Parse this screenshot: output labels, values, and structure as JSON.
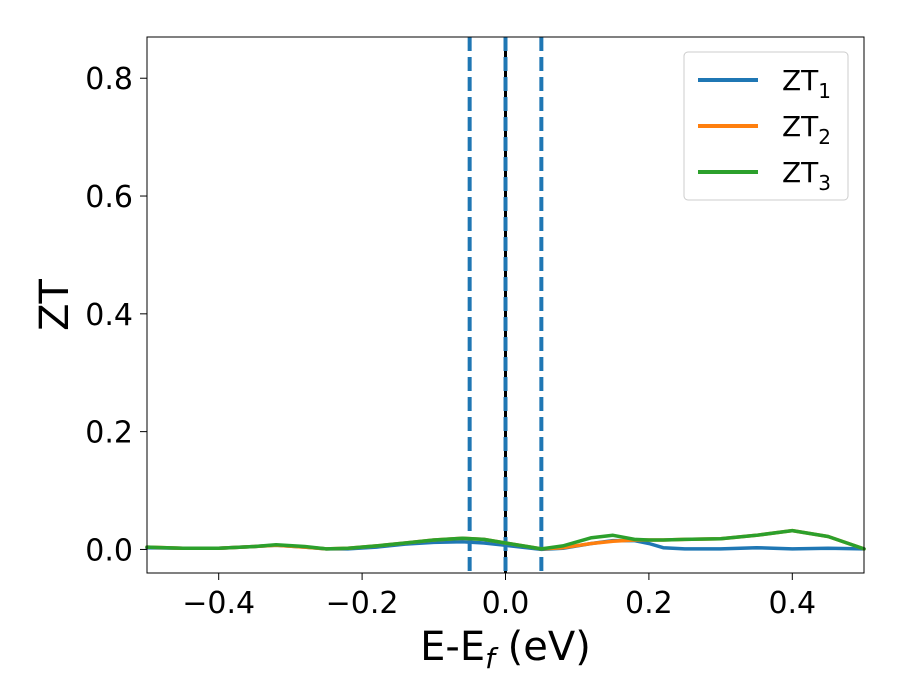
{
  "chart_data": {
    "type": "line",
    "xlabel": {
      "main": "E-E",
      "sub": "f",
      "unit": " (eV)"
    },
    "ylabel": "ZT",
    "xlim": [
      -0.5,
      0.5
    ],
    "ylim": [
      -0.04,
      0.87
    ],
    "x_ticks": [
      -0.4,
      -0.2,
      0.0,
      0.2,
      0.4
    ],
    "x_tick_labels": [
      "−0.4",
      "−0.2",
      "0.0",
      "0.2",
      "0.4"
    ],
    "y_ticks": [
      0.0,
      0.2,
      0.4,
      0.6,
      0.8
    ],
    "y_tick_labels": [
      "0.0",
      "0.2",
      "0.4",
      "0.6",
      "0.8"
    ],
    "grid": false,
    "legend_position": "top-right",
    "vertical_lines": [
      {
        "x": -0.05,
        "style": "dashed",
        "color": "#1f77b4"
      },
      {
        "x": 0.0,
        "style": "solid",
        "color": "#000000"
      },
      {
        "x": 0.0,
        "style": "dashed",
        "color": "#1f77b4"
      },
      {
        "x": 0.05,
        "style": "dashed",
        "color": "#1f77b4"
      }
    ],
    "series": [
      {
        "name": "ZT",
        "subscript": "1",
        "color": "#1f77b4",
        "x": [
          -0.5,
          -0.45,
          -0.4,
          -0.35,
          -0.32,
          -0.28,
          -0.25,
          -0.22,
          -0.18,
          -0.14,
          -0.1,
          -0.06,
          -0.03,
          0.0,
          0.03,
          0.05,
          0.08,
          0.12,
          0.15,
          0.18,
          0.2,
          0.22,
          0.25,
          0.3,
          0.35,
          0.4,
          0.45,
          0.5
        ],
        "y": [
          0.003,
          0.002,
          0.002,
          0.005,
          0.007,
          0.004,
          0.001,
          0.001,
          0.004,
          0.009,
          0.012,
          0.013,
          0.011,
          0.007,
          0.003,
          0.0,
          0.002,
          0.01,
          0.015,
          0.015,
          0.01,
          0.003,
          0.001,
          0.001,
          0.003,
          0.001,
          0.002,
          0.001
        ]
      },
      {
        "name": "ZT",
        "subscript": "2",
        "color": "#ff7f0e",
        "x": [
          -0.5,
          -0.45,
          -0.4,
          -0.35,
          -0.32,
          -0.28,
          -0.25,
          -0.22,
          -0.18,
          -0.14,
          -0.1,
          -0.06,
          -0.03,
          0.0,
          0.03,
          0.05,
          0.08,
          0.12,
          0.15,
          0.18,
          0.2,
          0.22,
          0.25,
          0.3,
          0.35,
          0.4,
          0.45,
          0.5
        ],
        "y": [
          0.004,
          0.002,
          0.002,
          0.005,
          0.007,
          0.004,
          0.001,
          0.002,
          0.006,
          0.011,
          0.016,
          0.019,
          0.017,
          0.011,
          0.005,
          0.001,
          0.003,
          0.01,
          0.014,
          0.016,
          0.016,
          0.016,
          0.017,
          0.018,
          0.024,
          0.032,
          0.022,
          0.001
        ]
      },
      {
        "name": "ZT",
        "subscript": "3",
        "color": "#2ca02c",
        "x": [
          -0.5,
          -0.45,
          -0.4,
          -0.35,
          -0.32,
          -0.28,
          -0.25,
          -0.22,
          -0.18,
          -0.14,
          -0.1,
          -0.06,
          -0.03,
          0.0,
          0.03,
          0.05,
          0.08,
          0.12,
          0.15,
          0.18,
          0.2,
          0.22,
          0.25,
          0.3,
          0.35,
          0.4,
          0.45,
          0.5
        ],
        "y": [
          0.004,
          0.002,
          0.002,
          0.005,
          0.008,
          0.005,
          0.001,
          0.002,
          0.006,
          0.011,
          0.016,
          0.019,
          0.017,
          0.011,
          0.005,
          0.001,
          0.006,
          0.02,
          0.024,
          0.017,
          0.016,
          0.016,
          0.017,
          0.018,
          0.024,
          0.032,
          0.022,
          0.001
        ]
      }
    ]
  }
}
